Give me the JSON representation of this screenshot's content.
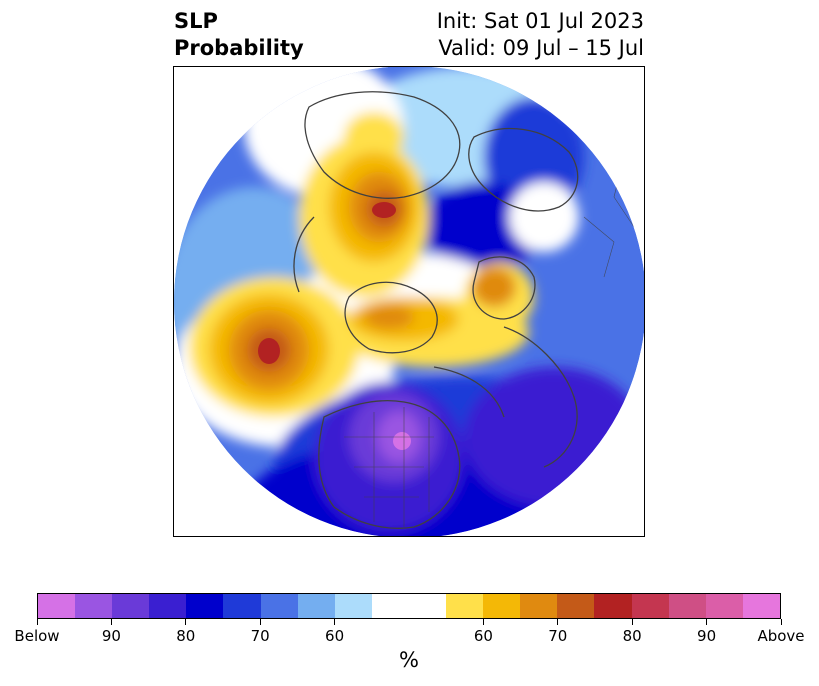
{
  "title": {
    "left_line1": "SLP",
    "left_line2": "Probability",
    "right_line1": "Init: Sat 01 Jul 2023",
    "right_line2": "Valid: 09 Jul – 15 Jul"
  },
  "colors": {
    "bands": [
      "#d571e6",
      "#9a55e2",
      "#6a3ad8",
      "#3a1fd1",
      "#0000cc",
      "#1f3ad8",
      "#4a72e6",
      "#74aef0",
      "#acdcfb",
      "#ffffff",
      "#ffffff",
      "#ffe04a",
      "#f4b806",
      "#e08a10",
      "#c45a18",
      "#b22222",
      "#c43650",
      "#cf4f85",
      "#db5ea8",
      "#e676dd"
    ],
    "outline": "#404040"
  },
  "colorbar": {
    "tick_labels": [
      "Below",
      "90",
      "80",
      "70",
      "60",
      "60",
      "70",
      "80",
      "90",
      "Above"
    ],
    "unit": "%"
  }
}
